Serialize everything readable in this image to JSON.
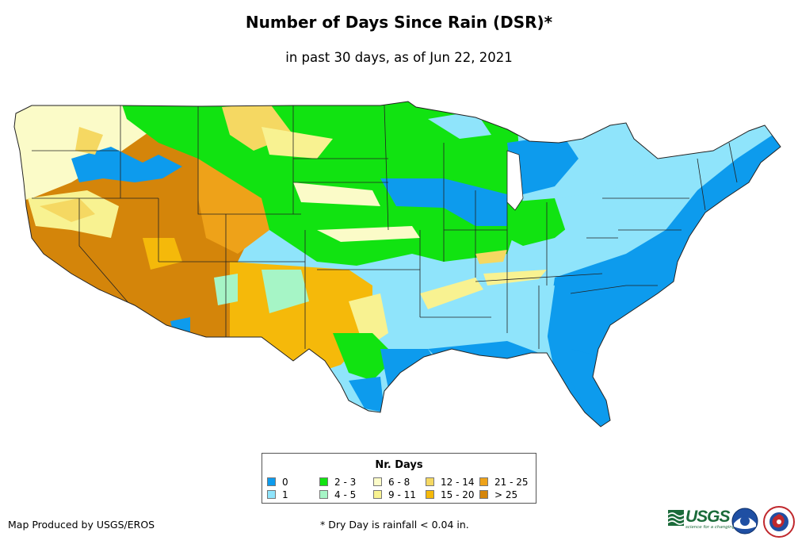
{
  "title": "Number of Days Since Rain (DSR)*",
  "subtitle": "in past 30 days, as of Jun 22, 2021",
  "legend": {
    "title": "Nr. Days",
    "items": [
      {
        "label": "0",
        "color": "#0d9bed"
      },
      {
        "label": "1",
        "color": "#8fe4fb"
      },
      {
        "label": "2 - 3",
        "color": "#11e311"
      },
      {
        "label": "4 - 5",
        "color": "#a6f5c6"
      },
      {
        "label": "6 - 8",
        "color": "#fbfbc8"
      },
      {
        "label": "9 - 11",
        "color": "#f8f291"
      },
      {
        "label": "12 - 14",
        "color": "#f5d862"
      },
      {
        "label": "15 - 20",
        "color": "#f5b90a"
      },
      {
        "label": "21 - 25",
        "color": "#eea219"
      },
      {
        "label": "> 25",
        "color": "#d4850a"
      }
    ]
  },
  "credit": "Map Produced by USGS/EROS",
  "footnote": "* Dry Day is rainfall < 0.04 in.",
  "logos": {
    "usgs": {
      "text": "USGS",
      "tagline": "science for a changing world",
      "color": "#1b6b3a"
    },
    "noaa": {
      "name": "noaa-logo-icon"
    },
    "nws": {
      "name": "nws-logo-icon"
    }
  }
}
